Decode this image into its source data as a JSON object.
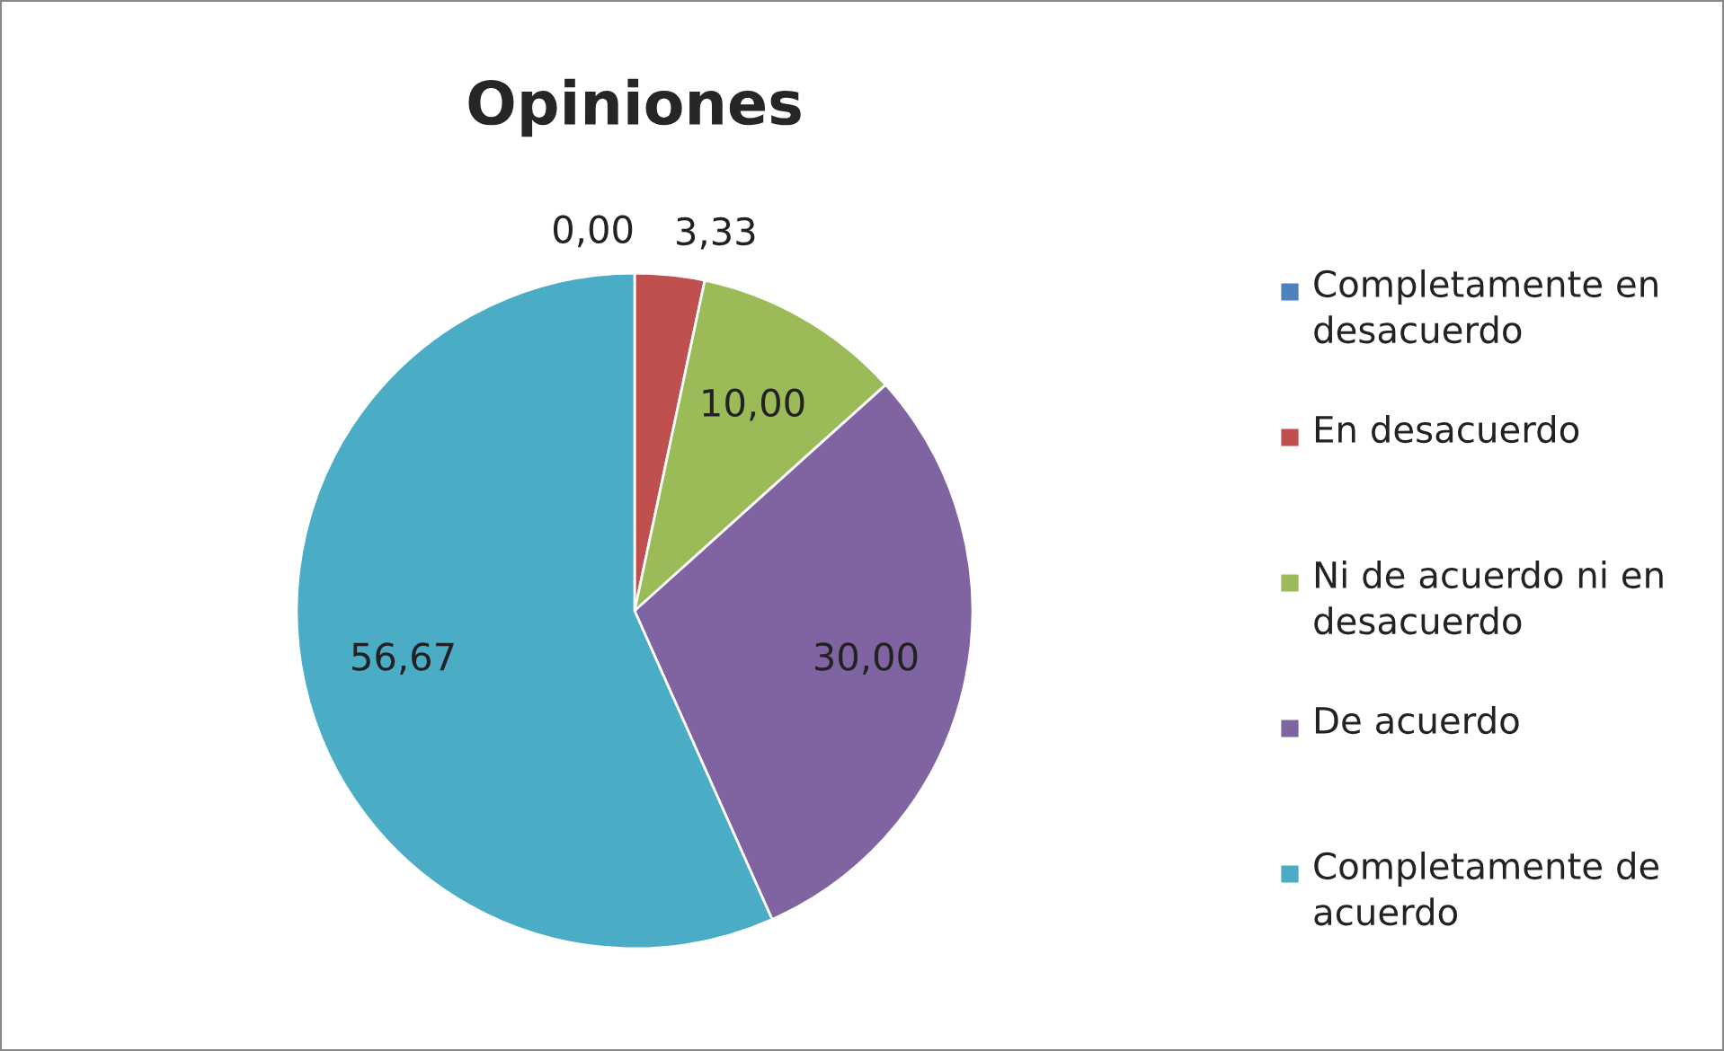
{
  "chart_data": {
    "type": "pie",
    "title": "Opiniones",
    "categories": [
      "Completamente en desacuerdo",
      "En desacuerdo",
      "Ni de acuerdo ni en desacuerdo",
      "De acuerdo",
      "Completamente de acuerdo"
    ],
    "values": [
      0,
      3.33,
      10,
      30,
      56.67
    ],
    "value_labels": [
      "0,00",
      "3,33",
      "10,00",
      "30,00",
      "56,67"
    ],
    "colors": [
      "#4f81bd",
      "#c0504d",
      "#9bbb59",
      "#8064a2",
      "#4bacc6"
    ],
    "legend": "right"
  }
}
